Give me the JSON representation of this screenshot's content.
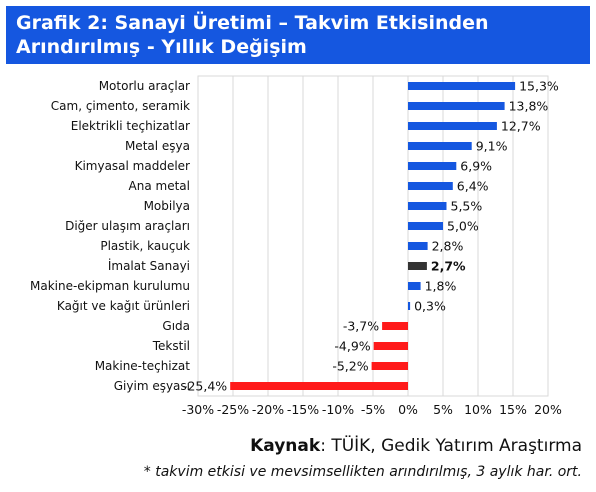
{
  "header": {
    "title_line1": "Grafik 2: Sanayi Üretimi – Takvim Etkisinden",
    "title_line2": "Arındırılmış - Yıllık Değişim"
  },
  "footer": {
    "source_label": "Kaynak",
    "source_text": ": TÜİK, Gedik Yatırım Araştırma",
    "note": "* takvim etkisi ve mevsimsellikten arındırılmış, 3 aylık har. ort."
  },
  "colors": {
    "positive": "#1557e0",
    "negative": "#ff1a1a",
    "highlight": "#333333",
    "title_band": "#1557e0"
  },
  "chart_data": {
    "type": "bar",
    "orientation": "horizontal",
    "xlim": [
      -30,
      20
    ],
    "x_ticks": [
      -30,
      -25,
      -20,
      -15,
      -10,
      -5,
      0,
      5,
      10,
      15,
      20
    ],
    "x_tick_labels": [
      "-30%",
      "-25%",
      "-20%",
      "-15%",
      "-10%",
      "-5%",
      "0%",
      "5%",
      "10%",
      "15%",
      "20%"
    ],
    "grid": true,
    "highlight_category": "İmalat Sanayi",
    "categories": [
      "Motorlu araçlar",
      "Cam, çimento, seramik",
      "Elektrikli teçhizatlar",
      "Metal eşya",
      "Kimyasal maddeler",
      "Ana metal",
      "Mobilya",
      "Diğer ulaşım araçları",
      "Plastik, kauçuk",
      "İmalat Sanayi",
      "Makine-ekipman kurulumu",
      "Kağıt ve kağıt ürünleri",
      "Gıda",
      "Tekstil",
      "Makine-teçhizat",
      "Giyim eşyası"
    ],
    "values": [
      15.3,
      13.8,
      12.7,
      9.1,
      6.9,
      6.4,
      5.5,
      5.0,
      2.8,
      2.7,
      1.8,
      0.3,
      -3.7,
      -4.9,
      -5.2,
      -25.4
    ],
    "value_labels": [
      "15,3%",
      "13,8%",
      "12,7%",
      "9,1%",
      "6,9%",
      "6,4%",
      "5,5%",
      "5,0%",
      "2,8%",
      "2,7%",
      "1,8%",
      "0,3%",
      "-3,7%",
      "-4,9%",
      "-5,2%",
      "-25,4%"
    ]
  }
}
